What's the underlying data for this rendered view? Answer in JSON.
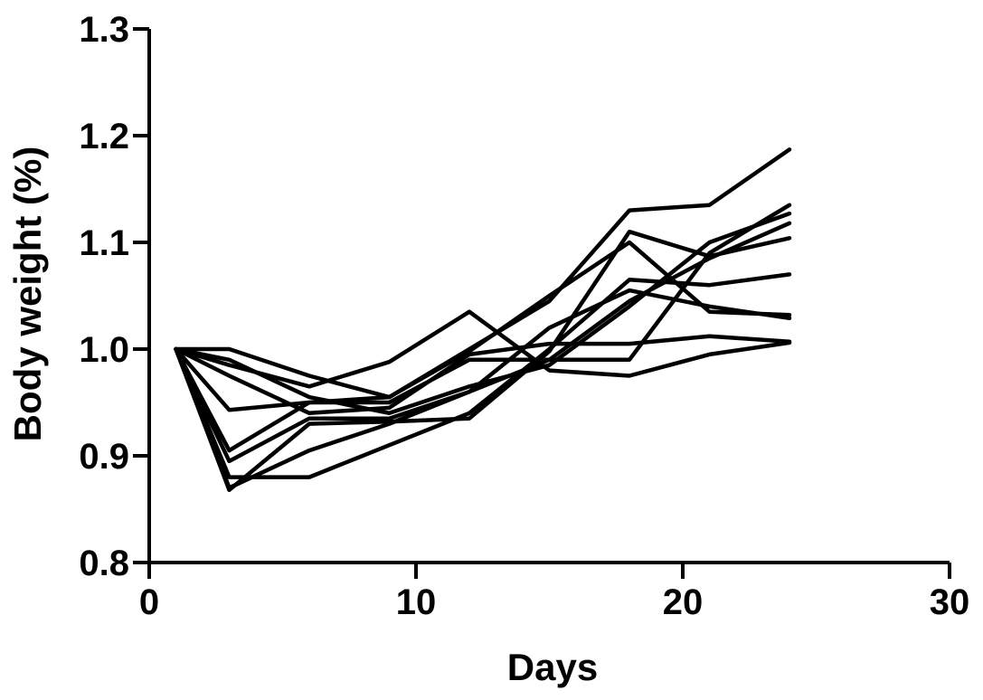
{
  "chart_data": {
    "type": "line",
    "title": "",
    "xlabel": "Days",
    "ylabel": "Body weight (%)",
    "xlim": [
      0,
      30
    ],
    "ylim": [
      0.8,
      1.3
    ],
    "xticks": [
      0,
      10,
      20,
      30
    ],
    "yticks": [
      0.8,
      0.9,
      1.0,
      1.1,
      1.2,
      1.3
    ],
    "x": [
      1,
      3,
      6,
      9,
      12,
      15,
      18,
      21,
      24
    ],
    "grid": false,
    "legend": "none",
    "series": [
      {
        "values": [
          1.0,
          1.0,
          0.975,
          0.955,
          1.0,
          1.045,
          1.13,
          1.135,
          1.187
        ]
      },
      {
        "values": [
          1.0,
          0.985,
          0.965,
          0.988,
          1.035,
          0.98,
          0.975,
          0.995,
          1.006
        ]
      },
      {
        "values": [
          1.0,
          0.943,
          0.95,
          0.955,
          0.998,
          1.05,
          1.1,
          1.035,
          1.032
        ]
      },
      {
        "values": [
          1.0,
          0.905,
          0.95,
          0.95,
          0.99,
          0.99,
          0.99,
          1.09,
          1.135
        ]
      },
      {
        "values": [
          1.0,
          0.87,
          0.905,
          0.93,
          0.96,
          0.99,
          1.045,
          1.085,
          1.118
        ]
      },
      {
        "values": [
          1.0,
          0.868,
          0.93,
          0.932,
          0.935,
          0.998,
          1.11,
          1.087,
          1.104
        ]
      },
      {
        "values": [
          1.0,
          0.88,
          0.88,
          0.91,
          0.94,
          1.0,
          1.065,
          1.06,
          1.07
        ]
      },
      {
        "values": [
          1.0,
          0.975,
          0.94,
          0.945,
          0.995,
          1.005,
          1.005,
          1.012,
          1.007
        ]
      },
      {
        "values": [
          1.0,
          0.99,
          0.955,
          0.94,
          0.965,
          0.985,
          1.04,
          1.1,
          1.127
        ]
      },
      {
        "values": [
          1.0,
          0.895,
          0.935,
          0.935,
          0.96,
          1.02,
          1.055,
          1.04,
          1.029
        ]
      }
    ]
  }
}
